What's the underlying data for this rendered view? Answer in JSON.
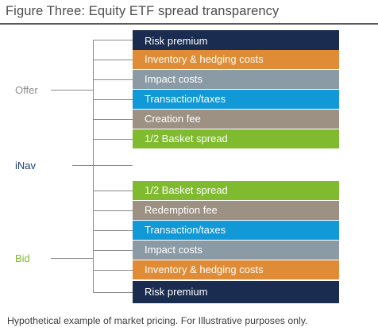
{
  "title": "Figure Three: Equity ETF spread transparency",
  "labels": {
    "offer": "Offer",
    "inav": "iNav",
    "bid": "Bid"
  },
  "colors": {
    "navy": "#1a2c4f",
    "orange": "#e08c37",
    "grey": "#8b9ba6",
    "blue": "#1198d6",
    "taupe": "#9d9184",
    "green": "#7fba2f",
    "offer_label": "#8d8d8d",
    "inav_label": "#1a3f73",
    "bid_label": "#7fba2f",
    "line": "#8a8a8a"
  },
  "offer_bars": [
    {
      "label": "Risk premium",
      "color": "navy"
    },
    {
      "label": "Inventory & hedging costs",
      "color": "orange"
    },
    {
      "label": "Impact costs",
      "color": "grey"
    },
    {
      "label": "Transaction/taxes",
      "color": "blue"
    },
    {
      "label": "Creation fee",
      "color": "taupe"
    },
    {
      "label": "1/2 Basket spread",
      "color": "green"
    }
  ],
  "bid_bars": [
    {
      "label": "1/2 Basket spread",
      "color": "green"
    },
    {
      "label": "Redemption fee",
      "color": "taupe"
    },
    {
      "label": "Transaction/taxes",
      "color": "blue"
    },
    {
      "label": "Impact  costs",
      "color": "grey"
    },
    {
      "label": "Inventory & hedging costs",
      "color": "orange"
    },
    {
      "label": "Risk premium",
      "color": "navy"
    }
  ],
  "footnote": "Hypothetical example of market pricing.  For Illustrative purposes only."
}
